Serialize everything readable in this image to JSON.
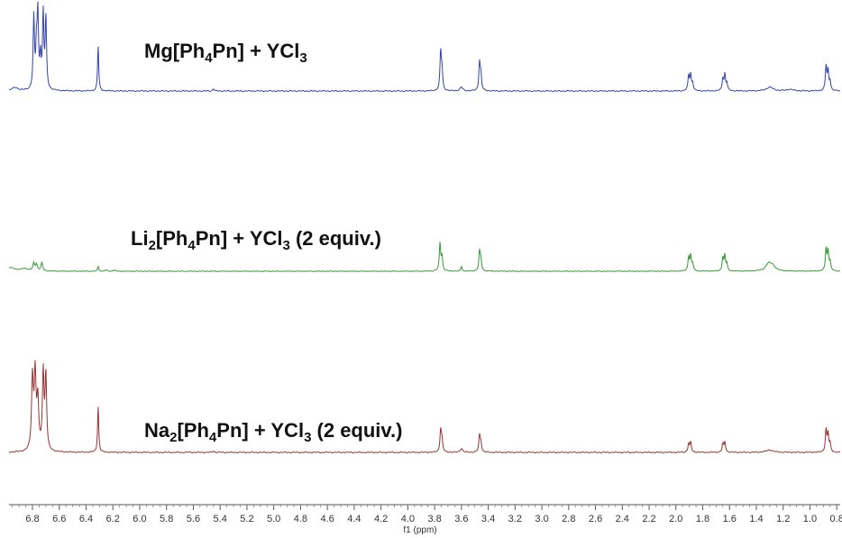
{
  "chart_data": {
    "type": "line",
    "title": "",
    "xlabel": "f1 (ppm)",
    "ylabel": "",
    "x_reversed": true,
    "xlim": [
      7.0,
      0.75
    ],
    "x_ticks": [
      6.8,
      6.6,
      6.4,
      6.2,
      6.0,
      5.8,
      5.6,
      5.4,
      5.2,
      5.0,
      4.8,
      4.6,
      4.4,
      4.2,
      4.0,
      3.8,
      3.6,
      3.4,
      3.2,
      3.0,
      2.8,
      2.6,
      2.4,
      2.2,
      2.0,
      1.8,
      1.6,
      1.4,
      1.2,
      1.0,
      0.8
    ],
    "x_tick_labels": [
      "6.8",
      "6.6",
      "6.4",
      "6.2",
      "6.0",
      "5.8",
      "5.6",
      "5.4",
      "5.2",
      "5.0",
      "4.8",
      "4.6",
      "4.4",
      "4.2",
      "4.0",
      "3.8",
      "3.6",
      "3.4",
      "3.2",
      "3.0",
      "2.8",
      "2.6",
      "2.4",
      "2.2",
      "2.0",
      "1.8",
      "1.6",
      "1.4",
      "1.2",
      "1.0",
      "0.8"
    ],
    "grid": false,
    "series": [
      {
        "color": "#3344aa",
        "label_parts": [
          "Mg[Ph",
          "4",
          "Pn] + YCl",
          "3",
          ""
        ],
        "peaks": [
          {
            "x": 6.93,
            "h": 0.04,
            "w": 0.03
          },
          {
            "x": 6.79,
            "h": 0.94,
            "w": 0.006
          },
          {
            "x": 6.77,
            "h": 0.5,
            "w": 0.006
          },
          {
            "x": 6.76,
            "h": 0.94,
            "w": 0.006
          },
          {
            "x": 6.74,
            "h": 0.4,
            "w": 0.006
          },
          {
            "x": 6.72,
            "h": 0.98,
            "w": 0.006
          },
          {
            "x": 6.7,
            "h": 0.93,
            "w": 0.006
          },
          {
            "x": 6.31,
            "h": 0.6,
            "w": 0.005
          },
          {
            "x": 5.45,
            "h": 0.03,
            "w": 0.006
          },
          {
            "x": 3.755,
            "h": 0.5,
            "w": 0.006
          },
          {
            "x": 3.745,
            "h": 0.25,
            "w": 0.006
          },
          {
            "x": 3.6,
            "h": 0.05,
            "w": 0.012
          },
          {
            "x": 3.465,
            "h": 0.36,
            "w": 0.006
          },
          {
            "x": 3.455,
            "h": 0.2,
            "w": 0.006
          },
          {
            "x": 1.905,
            "h": 0.2,
            "w": 0.006
          },
          {
            "x": 1.89,
            "h": 0.21,
            "w": 0.006
          },
          {
            "x": 1.875,
            "h": 0.1,
            "w": 0.006
          },
          {
            "x": 1.65,
            "h": 0.16,
            "w": 0.006
          },
          {
            "x": 1.635,
            "h": 0.21,
            "w": 0.006
          },
          {
            "x": 1.62,
            "h": 0.1,
            "w": 0.006
          },
          {
            "x": 1.3,
            "h": 0.05,
            "w": 0.03
          },
          {
            "x": 1.15,
            "h": 0.02,
            "w": 0.03
          },
          {
            "x": 0.88,
            "h": 0.32,
            "w": 0.006
          },
          {
            "x": 0.865,
            "h": 0.25,
            "w": 0.006
          },
          {
            "x": 0.85,
            "h": 0.12,
            "w": 0.006
          }
        ]
      },
      {
        "color": "#339933",
        "label_parts": [
          "Li",
          "2",
          "[Ph",
          "4",
          "Pn] + YCl",
          "3",
          " (2 equiv.)"
        ],
        "peaks": [
          {
            "x": 6.96,
            "h": 0.07,
            "w": 0.035
          },
          {
            "x": 6.86,
            "h": 0.05,
            "w": 0.03
          },
          {
            "x": 6.79,
            "h": 0.15,
            "w": 0.008
          },
          {
            "x": 6.77,
            "h": 0.13,
            "w": 0.008
          },
          {
            "x": 6.73,
            "h": 0.16,
            "w": 0.008
          },
          {
            "x": 6.31,
            "h": 0.1,
            "w": 0.005
          },
          {
            "x": 6.25,
            "h": 0.03,
            "w": 0.006
          },
          {
            "x": 6.19,
            "h": 0.03,
            "w": 0.006
          },
          {
            "x": 3.76,
            "h": 0.55,
            "w": 0.006
          },
          {
            "x": 3.745,
            "h": 0.28,
            "w": 0.006
          },
          {
            "x": 3.6,
            "h": 0.1,
            "w": 0.005
          },
          {
            "x": 3.465,
            "h": 0.38,
            "w": 0.006
          },
          {
            "x": 3.455,
            "h": 0.22,
            "w": 0.006
          },
          {
            "x": 1.905,
            "h": 0.28,
            "w": 0.006
          },
          {
            "x": 1.89,
            "h": 0.3,
            "w": 0.006
          },
          {
            "x": 1.875,
            "h": 0.14,
            "w": 0.006
          },
          {
            "x": 1.65,
            "h": 0.26,
            "w": 0.006
          },
          {
            "x": 1.635,
            "h": 0.3,
            "w": 0.006
          },
          {
            "x": 1.62,
            "h": 0.14,
            "w": 0.006
          },
          {
            "x": 1.31,
            "h": 0.13,
            "w": 0.025
          },
          {
            "x": 1.28,
            "h": 0.1,
            "w": 0.025
          },
          {
            "x": 0.88,
            "h": 0.44,
            "w": 0.006
          },
          {
            "x": 0.865,
            "h": 0.38,
            "w": 0.006
          },
          {
            "x": 0.85,
            "h": 0.18,
            "w": 0.006
          }
        ]
      },
      {
        "color": "#993333",
        "label_parts": [
          "Na",
          "2",
          "[Ph",
          "4",
          "Pn] + YCl",
          "3",
          " (2 equiv.)"
        ],
        "peaks": [
          {
            "x": 6.8,
            "h": 0.88,
            "w": 0.008
          },
          {
            "x": 6.78,
            "h": 0.92,
            "w": 0.008
          },
          {
            "x": 6.76,
            "h": 0.6,
            "w": 0.008
          },
          {
            "x": 6.72,
            "h": 0.96,
            "w": 0.007
          },
          {
            "x": 6.7,
            "h": 0.92,
            "w": 0.007
          },
          {
            "x": 6.31,
            "h": 0.58,
            "w": 0.005
          },
          {
            "x": 5.45,
            "h": 0.02,
            "w": 0.006
          },
          {
            "x": 3.755,
            "h": 0.28,
            "w": 0.006
          },
          {
            "x": 3.745,
            "h": 0.14,
            "w": 0.006
          },
          {
            "x": 3.6,
            "h": 0.05,
            "w": 0.01
          },
          {
            "x": 3.465,
            "h": 0.2,
            "w": 0.006
          },
          {
            "x": 3.455,
            "h": 0.12,
            "w": 0.006
          },
          {
            "x": 1.905,
            "h": 0.11,
            "w": 0.006
          },
          {
            "x": 1.89,
            "h": 0.12,
            "w": 0.006
          },
          {
            "x": 1.65,
            "h": 0.1,
            "w": 0.006
          },
          {
            "x": 1.635,
            "h": 0.13,
            "w": 0.006
          },
          {
            "x": 1.3,
            "h": 0.03,
            "w": 0.03
          },
          {
            "x": 0.88,
            "h": 0.28,
            "w": 0.006
          },
          {
            "x": 0.865,
            "h": 0.22,
            "w": 0.006
          },
          {
            "x": 0.85,
            "h": 0.1,
            "w": 0.006
          }
        ]
      }
    ]
  }
}
